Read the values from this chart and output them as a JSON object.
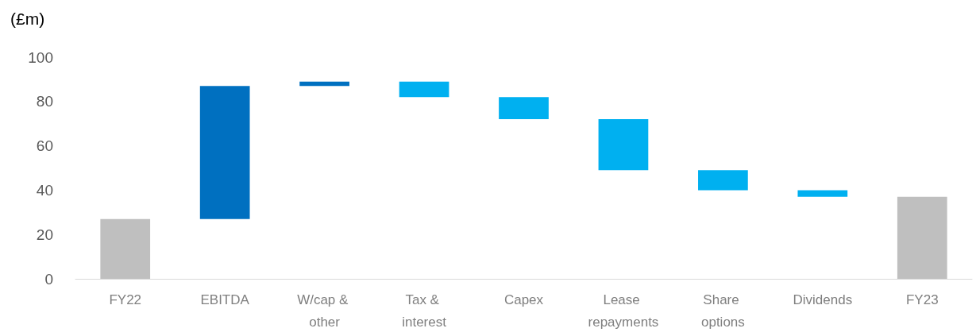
{
  "chart_data": {
    "type": "bar",
    "ylabel": "(£m)",
    "categories": [
      "FY22",
      "EBITDA",
      "W/cap & other",
      "Tax & interest",
      "Capex",
      "Lease repayments",
      "Share options",
      "Dividends",
      "FY23"
    ],
    "values": [
      27,
      60,
      2,
      -7,
      -10,
      -23,
      -9,
      -3,
      37
    ],
    "base": [
      0,
      27,
      87,
      89,
      82,
      72,
      49,
      40,
      0
    ],
    "colors": [
      "#bfbfbf",
      "#0070c0",
      "#0070c0",
      "#00b0f0",
      "#00b0f0",
      "#00b0f0",
      "#00b0f0",
      "#00b0f0",
      "#bfbfbf"
    ],
    "ylim": [
      0,
      100
    ],
    "yticks": [
      0,
      20,
      40,
      60,
      80,
      100
    ]
  }
}
